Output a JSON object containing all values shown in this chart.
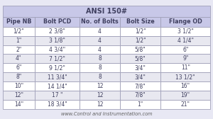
{
  "title": "ANSI 150#",
  "columns": [
    "Pipe NB",
    "Bolt PCD",
    "No. of Bolts",
    "Bolt Size",
    "Flange OD"
  ],
  "rows": [
    [
      "1/2\"",
      "2 3/8\"",
      "4",
      "1/2\"",
      "3 1/2\""
    ],
    [
      "1\"",
      "3 1/8\"",
      "4",
      "1/2\"",
      "4 1/4\""
    ],
    [
      "2\"",
      "4 3/4\"",
      "4",
      "5/8\"",
      "6\""
    ],
    [
      "4\"",
      "7 1/2\"",
      "8",
      "5/8\"",
      "9\""
    ],
    [
      "6\"",
      "9 1/2\"",
      "8",
      "3/4\"",
      "11\""
    ],
    [
      "8\"",
      "11 3/4\"",
      "8",
      "3/4\"",
      "13 1/2\""
    ],
    [
      "10\"",
      "14 1/4\"",
      "12",
      "7/8\"",
      "16\""
    ],
    [
      "12\"",
      "17 \"",
      "12",
      "7/8\"",
      "19\""
    ],
    [
      "14\"",
      "18 3/4\"",
      "12",
      "1\"",
      "21\""
    ]
  ],
  "header_bg": "#c8c8e8",
  "title_bg": "#c8c8e8",
  "row_bg_even": "#ffffff",
  "row_bg_odd": "#e8e8f0",
  "grid_color": "#a0a0b8",
  "text_color": "#404060",
  "footer_text": "www.Control and Instrumentation.com",
  "footer_color": "#606060",
  "title_fontsize": 7.0,
  "header_fontsize": 5.8,
  "cell_fontsize": 5.5,
  "footer_fontsize": 4.8,
  "fig_bg": "#e8e8f4"
}
